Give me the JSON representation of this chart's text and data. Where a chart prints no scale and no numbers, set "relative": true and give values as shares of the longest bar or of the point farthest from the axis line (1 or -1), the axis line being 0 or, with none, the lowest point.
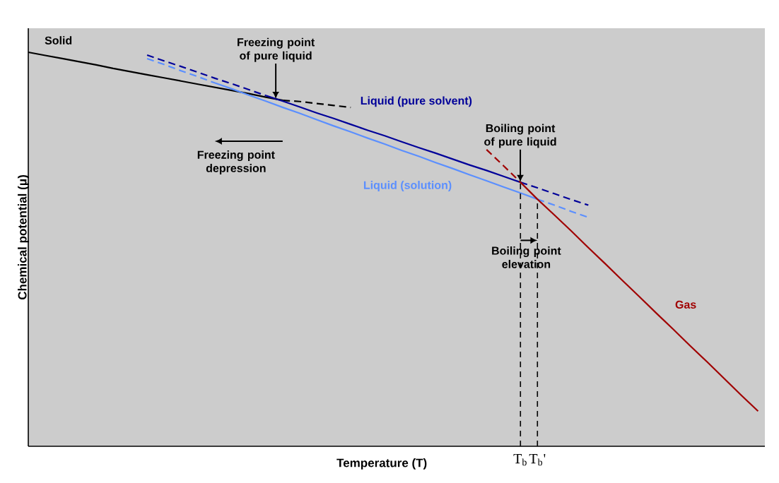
{
  "chart_data": {
    "type": "line",
    "relative": true,
    "tick_labels": "x",
    "xlabel": "Temperature (T)",
    "ylabel": "Chemical potential (μ)",
    "marker": "none",
    "legend": false,
    "categories": [
      null,
      null,
      null,
      null,
      null,
      null,
      null,
      null,
      null,
      null,
      null,
      null,
      null,
      null,
      null,
      null,
      null,
      null,
      null,
      null,
      null,
      null,
      null,
      null,
      null,
      null,
      null,
      null,
      null,
      "T$_{b}$",
      "T$_{b}$'",
      null,
      null,
      null,
      null,
      null,
      null,
      null,
      null,
      null,
      null,
      null,
      null,
      null
    ],
    "series": [
      {
        "name": "Solid",
        "color": "#000000",
        "line_style": "solid",
        "values": [
          1.0,
          0.992,
          0.984,
          0.976,
          0.968,
          0.959,
          0.951,
          0.943,
          0.935,
          0.927,
          0.919,
          0.911,
          0.903,
          0.895,
          0.886,
          0.878,
          null,
          null,
          null,
          null,
          null,
          null,
          null,
          null,
          null,
          null,
          null,
          null,
          null,
          null,
          null,
          null,
          null,
          null,
          null,
          null,
          null,
          null,
          null,
          null,
          null,
          null,
          null,
          null
        ]
      },
      {
        "color": "#000000",
        "line_style": "dashed",
        "values": [
          null,
          null,
          null,
          null,
          null,
          null,
          null,
          null,
          null,
          null,
          null,
          null,
          null,
          null,
          null,
          0.878,
          0.875,
          0.87,
          0.865,
          0.86,
          null,
          null,
          null,
          null,
          null,
          null,
          null,
          null,
          null,
          null,
          null,
          null,
          null,
          null,
          null,
          null,
          null,
          null,
          null,
          null,
          null,
          null,
          null,
          null
        ]
      },
      {
        "name": "Liquid (pure solvent)",
        "color": "#000099",
        "line_style": "solid",
        "values": [
          null,
          null,
          null,
          null,
          null,
          null,
          null,
          null,
          null,
          null,
          null,
          null,
          null,
          null,
          0.89,
          0.876,
          0.861,
          0.846,
          0.832,
          0.817,
          0.802,
          0.788,
          0.773,
          0.758,
          0.744,
          0.729,
          0.714,
          0.7,
          0.685,
          0.67,
          null,
          null,
          null,
          null,
          null,
          null,
          null,
          null,
          null,
          null,
          null,
          null,
          null,
          null
        ]
      },
      {
        "color": "#000099",
        "line_style": "dashed",
        "values": [
          null,
          null,
          null,
          null,
          null,
          null,
          null,
          0.993,
          0.978,
          0.964,
          0.949,
          0.934,
          0.92,
          0.905,
          0.89,
          null,
          null,
          null,
          null,
          null,
          null,
          null,
          null,
          null,
          null,
          null,
          null,
          null,
          null,
          null,
          null,
          null,
          null,
          null,
          null,
          null,
          null,
          null,
          null,
          null,
          null,
          null,
          null,
          null
        ]
      },
      {
        "color": "#000099",
        "line_style": "dashed",
        "values": [
          null,
          null,
          null,
          null,
          null,
          null,
          null,
          null,
          null,
          null,
          null,
          null,
          null,
          null,
          null,
          null,
          null,
          null,
          null,
          null,
          null,
          null,
          null,
          null,
          null,
          null,
          null,
          null,
          null,
          0.67,
          0.656,
          0.641,
          0.626,
          0.612,
          null,
          null,
          null,
          null,
          null,
          null,
          null,
          null,
          null,
          null
        ]
      },
      {
        "name": "Liquid (solution)",
        "color": "#5b8fff",
        "line_style": "solid",
        "values": [
          null,
          null,
          null,
          null,
          null,
          null,
          null,
          null,
          null,
          null,
          null,
          0.922,
          0.907,
          0.891,
          0.876,
          0.86,
          0.845,
          0.829,
          0.813,
          0.798,
          0.782,
          0.767,
          0.751,
          0.736,
          0.72,
          0.705,
          0.689,
          0.674,
          0.658,
          0.643,
          0.627,
          null,
          null,
          null,
          null,
          null,
          null,
          null,
          null,
          null,
          null,
          null,
          null,
          null
        ]
      },
      {
        "color": "#5b8fff",
        "line_style": "dashed",
        "values": [
          null,
          null,
          null,
          null,
          null,
          null,
          null,
          0.984,
          0.969,
          0.953,
          0.938,
          0.922,
          null,
          null,
          null,
          null,
          null,
          null,
          null,
          null,
          null,
          null,
          null,
          null,
          null,
          null,
          null,
          null,
          null,
          null,
          null,
          null,
          null,
          null,
          null,
          null,
          null,
          null,
          null,
          null,
          null,
          null,
          null,
          null
        ]
      },
      {
        "color": "#5b8fff",
        "line_style": "dashed",
        "values": [
          null,
          null,
          null,
          null,
          null,
          null,
          null,
          null,
          null,
          null,
          null,
          null,
          null,
          null,
          null,
          null,
          null,
          null,
          null,
          null,
          null,
          null,
          null,
          null,
          null,
          null,
          null,
          null,
          null,
          null,
          0.627,
          0.612,
          0.596,
          0.581,
          null,
          null,
          null,
          null,
          null,
          null,
          null,
          null,
          null,
          null
        ]
      },
      {
        "name": "Gas",
        "color": "#a00000",
        "line_style": "solid",
        "values": [
          null,
          null,
          null,
          null,
          null,
          null,
          null,
          null,
          null,
          null,
          null,
          null,
          null,
          null,
          null,
          null,
          null,
          null,
          null,
          null,
          null,
          null,
          null,
          null,
          null,
          null,
          null,
          null,
          null,
          0.67,
          0.627,
          0.587,
          0.546,
          0.504,
          0.463,
          0.421,
          0.38,
          0.338,
          0.297,
          0.255,
          0.214,
          0.172,
          0.13,
          0.089
        ]
      },
      {
        "color": "#a00000",
        "line_style": "dashed",
        "values": [
          null,
          null,
          null,
          null,
          null,
          null,
          null,
          null,
          null,
          null,
          null,
          null,
          null,
          null,
          null,
          null,
          null,
          null,
          null,
          null,
          null,
          null,
          null,
          null,
          null,
          null,
          null,
          0.753,
          0.712,
          0.67,
          null,
          null,
          null,
          null,
          null,
          null,
          null,
          null,
          null,
          null,
          null,
          null,
          null,
          null
        ]
      }
    ],
    "annotations": [
      "Freezing point of pure liquid",
      "Boiling point of pure liquid",
      "Freezing point depression",
      "Boiling point elevation"
    ]
  }
}
